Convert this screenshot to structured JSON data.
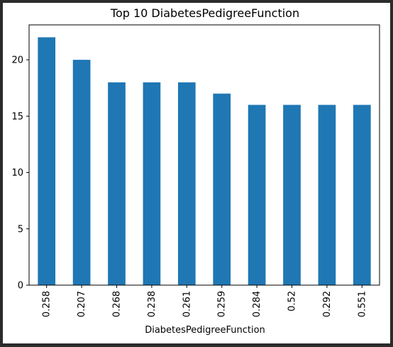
{
  "chart_data": {
    "type": "bar",
    "title": "Top 10 DiabetesPedigreeFunction",
    "xlabel": "DiabetesPedigreeFunction",
    "ylabel": "",
    "categories": [
      "0.258",
      "0.207",
      "0.268",
      "0.238",
      "0.261",
      "0.259",
      "0.284",
      "0.52",
      "0.292",
      "0.551"
    ],
    "values": [
      22,
      20,
      18,
      18,
      18,
      17,
      16,
      16,
      16,
      16
    ],
    "ylim": [
      0,
      23.1
    ],
    "yticks": [
      0,
      5,
      10,
      15,
      20
    ],
    "bar_color": "#1f77b4",
    "grid": false,
    "legend": "none"
  }
}
